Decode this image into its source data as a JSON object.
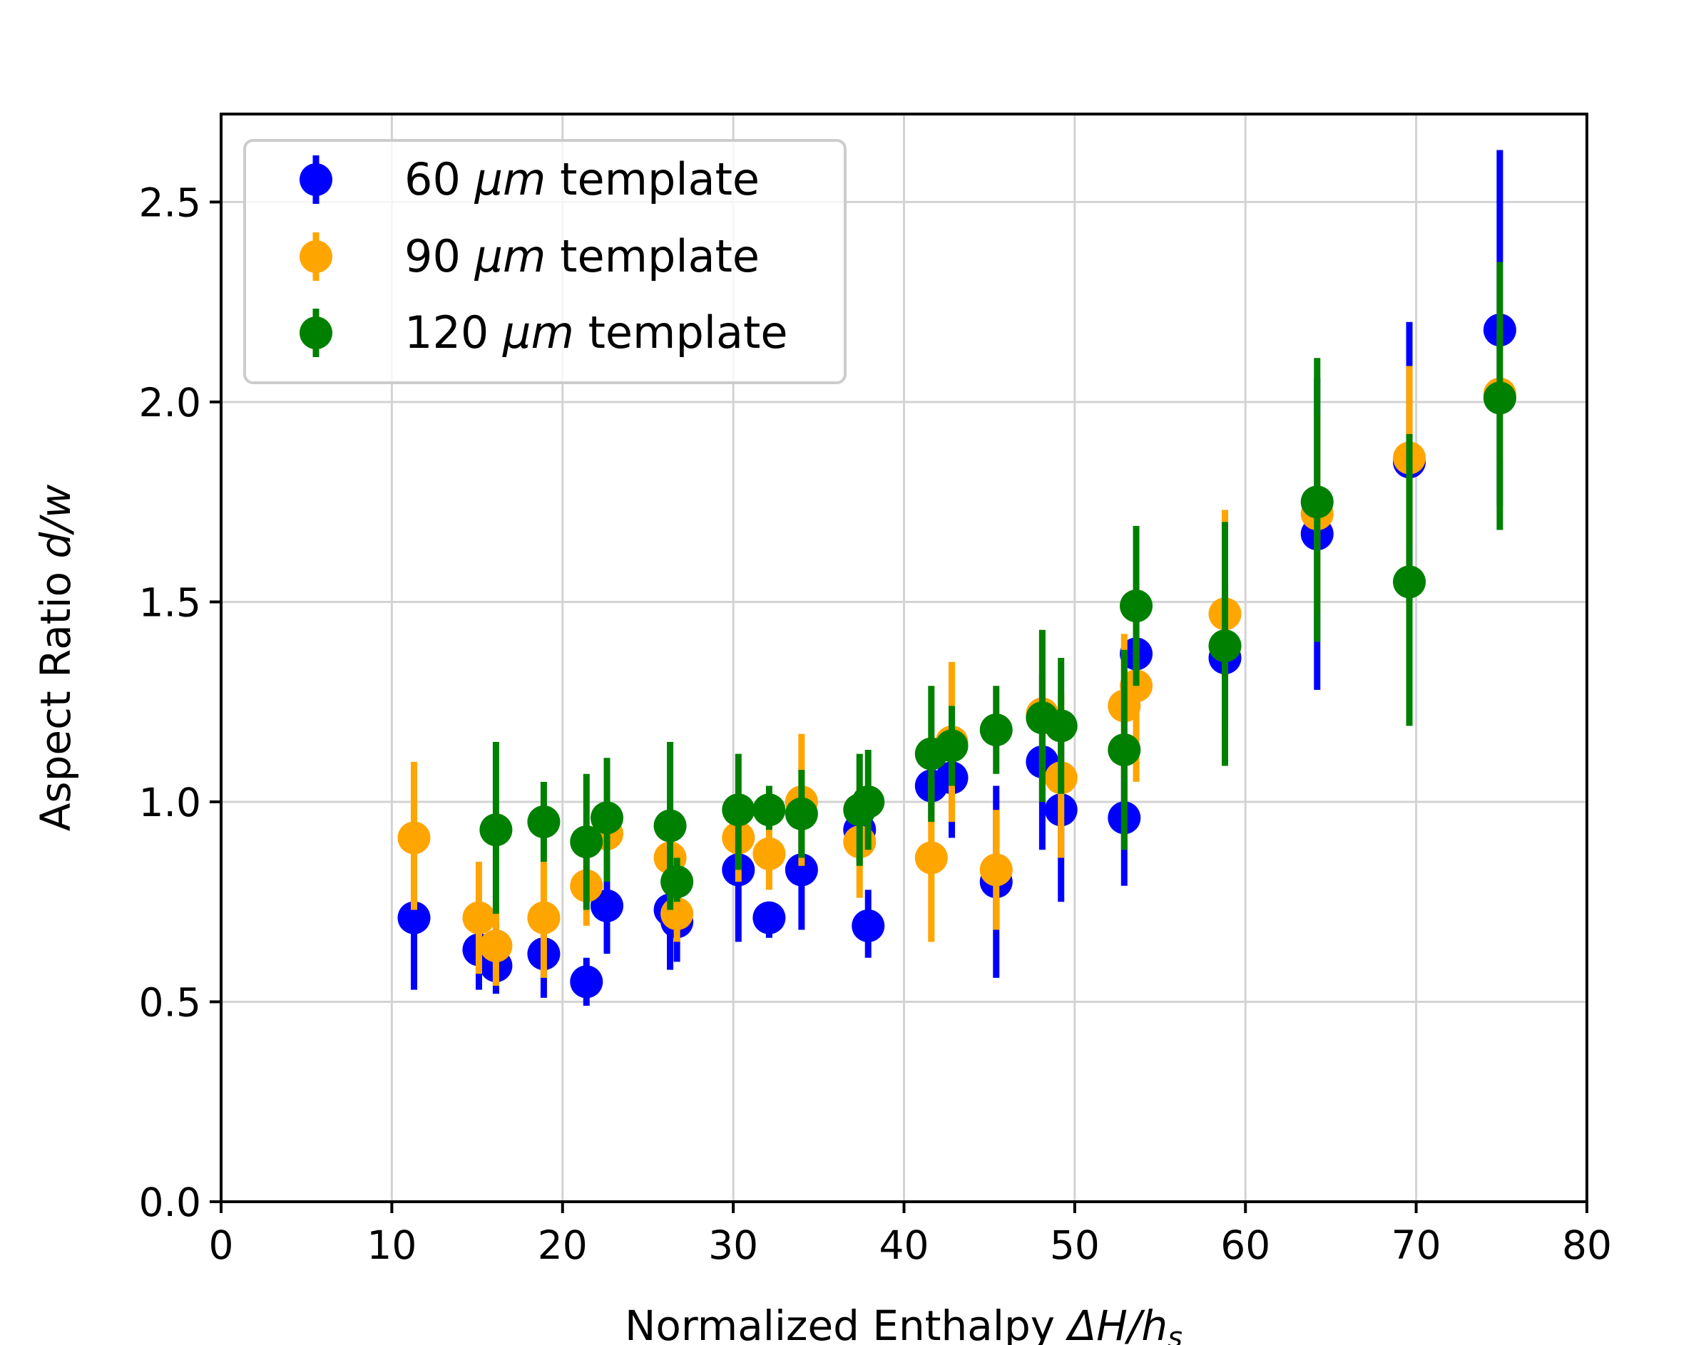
{
  "chart_data": {
    "type": "scatter",
    "title": "",
    "xlabel": {
      "prefix": "Normalized Enthalpy ",
      "math": "ΔH/h",
      "sub": "s"
    },
    "ylabel": {
      "prefix": "Aspect Ratio ",
      "math": "d/w"
    },
    "xlim": [
      0,
      80
    ],
    "ylim": [
      0,
      2.72
    ],
    "xticks": [
      0,
      10,
      20,
      30,
      40,
      50,
      60,
      70,
      80
    ],
    "yticks": [
      0.0,
      0.5,
      1.0,
      1.5,
      2.0,
      2.5
    ],
    "xtick_labels": [
      "0",
      "10",
      "20",
      "30",
      "40",
      "50",
      "60",
      "70",
      "80"
    ],
    "ytick_labels": [
      "0.0",
      "0.5",
      "1.0",
      "1.5",
      "2.0",
      "2.5"
    ],
    "grid": true,
    "legend_position": "top-left",
    "series": [
      {
        "name": "60 μm template",
        "legend": {
          "num": "60 ",
          "unit": "μm",
          "rest": " template"
        },
        "color": "#0000ff",
        "points": [
          {
            "x": 11.3,
            "y": 0.71,
            "lo": 0.53,
            "hi": 0.89
          },
          {
            "x": 15.1,
            "y": 0.63,
            "lo": 0.53,
            "hi": 0.72
          },
          {
            "x": 16.1,
            "y": 0.59,
            "lo": 0.52,
            "hi": 0.7
          },
          {
            "x": 18.9,
            "y": 0.62,
            "lo": 0.51,
            "hi": 0.73
          },
          {
            "x": 21.4,
            "y": 0.55,
            "lo": 0.49,
            "hi": 0.61
          },
          {
            "x": 22.6,
            "y": 0.74,
            "lo": 0.62,
            "hi": 0.86
          },
          {
            "x": 26.3,
            "y": 0.73,
            "lo": 0.58,
            "hi": 0.88
          },
          {
            "x": 26.7,
            "y": 0.7,
            "lo": 0.6,
            "hi": 0.8
          },
          {
            "x": 30.3,
            "y": 0.83,
            "lo": 0.65,
            "hi": 1.01
          },
          {
            "x": 32.1,
            "y": 0.71,
            "lo": 0.66,
            "hi": 0.75
          },
          {
            "x": 34.0,
            "y": 0.83,
            "lo": 0.68,
            "hi": 0.98
          },
          {
            "x": 37.4,
            "y": 0.93,
            "lo": 0.85,
            "hi": 1.01
          },
          {
            "x": 37.9,
            "y": 0.69,
            "lo": 0.61,
            "hi": 0.78
          },
          {
            "x": 41.6,
            "y": 1.04,
            "lo": 0.95,
            "hi": 1.13
          },
          {
            "x": 42.8,
            "y": 1.06,
            "lo": 0.91,
            "hi": 1.21
          },
          {
            "x": 45.4,
            "y": 0.8,
            "lo": 0.56,
            "hi": 1.04
          },
          {
            "x": 48.1,
            "y": 1.1,
            "lo": 0.88,
            "hi": 1.32
          },
          {
            "x": 49.2,
            "y": 0.98,
            "lo": 0.75,
            "hi": 1.21
          },
          {
            "x": 52.9,
            "y": 0.96,
            "lo": 0.79,
            "hi": 1.13
          },
          {
            "x": 53.6,
            "y": 1.37,
            "lo": 1.22,
            "hi": 1.52
          },
          {
            "x": 58.8,
            "y": 1.36,
            "lo": 1.17,
            "hi": 1.55
          },
          {
            "x": 64.2,
            "y": 1.67,
            "lo": 1.28,
            "hi": 2.06
          },
          {
            "x": 69.6,
            "y": 1.85,
            "lo": 1.5,
            "hi": 2.2
          },
          {
            "x": 74.9,
            "y": 2.18,
            "lo": 1.74,
            "hi": 2.63
          }
        ]
      },
      {
        "name": "90 μm template",
        "legend": {
          "num": "90 ",
          "unit": "μm",
          "rest": " template"
        },
        "color": "#ffa500",
        "points": [
          {
            "x": 11.3,
            "y": 0.91,
            "lo": 0.73,
            "hi": 1.1
          },
          {
            "x": 15.1,
            "y": 0.71,
            "lo": 0.57,
            "hi": 0.85
          },
          {
            "x": 16.1,
            "y": 0.64,
            "lo": 0.54,
            "hi": 0.74
          },
          {
            "x": 18.9,
            "y": 0.71,
            "lo": 0.56,
            "hi": 0.85
          },
          {
            "x": 21.4,
            "y": 0.79,
            "lo": 0.69,
            "hi": 0.9
          },
          {
            "x": 22.6,
            "y": 0.92,
            "lo": 0.83,
            "hi": 1.02
          },
          {
            "x": 26.3,
            "y": 0.86,
            "lo": 0.74,
            "hi": 0.98
          },
          {
            "x": 26.7,
            "y": 0.72,
            "lo": 0.65,
            "hi": 0.79
          },
          {
            "x": 30.3,
            "y": 0.91,
            "lo": 0.8,
            "hi": 1.02
          },
          {
            "x": 32.1,
            "y": 0.87,
            "lo": 0.78,
            "hi": 0.96
          },
          {
            "x": 34.0,
            "y": 1.0,
            "lo": 0.84,
            "hi": 1.17
          },
          {
            "x": 37.4,
            "y": 0.9,
            "lo": 0.76,
            "hi": 1.04
          },
          {
            "x": 41.6,
            "y": 0.86,
            "lo": 0.65,
            "hi": 1.06
          },
          {
            "x": 42.8,
            "y": 1.15,
            "lo": 0.95,
            "hi": 1.35
          },
          {
            "x": 45.4,
            "y": 0.83,
            "lo": 0.68,
            "hi": 0.98
          },
          {
            "x": 48.1,
            "y": 1.22,
            "lo": 1.0,
            "hi": 1.43
          },
          {
            "x": 49.2,
            "y": 1.06,
            "lo": 0.86,
            "hi": 1.27
          },
          {
            "x": 52.9,
            "y": 1.24,
            "lo": 1.06,
            "hi": 1.42
          },
          {
            "x": 53.6,
            "y": 1.29,
            "lo": 1.05,
            "hi": 1.52
          },
          {
            "x": 58.8,
            "y": 1.47,
            "lo": 1.22,
            "hi": 1.73
          },
          {
            "x": 64.2,
            "y": 1.72,
            "lo": 1.47,
            "hi": 1.97
          },
          {
            "x": 69.6,
            "y": 1.86,
            "lo": 1.64,
            "hi": 2.09
          },
          {
            "x": 74.9,
            "y": 2.02,
            "lo": 1.85,
            "hi": 2.18
          }
        ]
      },
      {
        "name": "120 μm template",
        "legend": {
          "num": "120 ",
          "unit": "μm",
          "rest": " template"
        },
        "color": "#008000",
        "points": [
          {
            "x": 16.1,
            "y": 0.93,
            "lo": 0.72,
            "hi": 1.15
          },
          {
            "x": 18.9,
            "y": 0.95,
            "lo": 0.85,
            "hi": 1.05
          },
          {
            "x": 21.4,
            "y": 0.9,
            "lo": 0.73,
            "hi": 1.07
          },
          {
            "x": 22.6,
            "y": 0.96,
            "lo": 0.8,
            "hi": 1.11
          },
          {
            "x": 26.3,
            "y": 0.94,
            "lo": 0.73,
            "hi": 1.15
          },
          {
            "x": 26.7,
            "y": 0.8,
            "lo": 0.75,
            "hi": 0.86
          },
          {
            "x": 30.3,
            "y": 0.98,
            "lo": 0.83,
            "hi": 1.12
          },
          {
            "x": 32.1,
            "y": 0.98,
            "lo": 0.93,
            "hi": 1.04
          },
          {
            "x": 34.0,
            "y": 0.97,
            "lo": 0.86,
            "hi": 1.08
          },
          {
            "x": 37.4,
            "y": 0.98,
            "lo": 0.84,
            "hi": 1.12
          },
          {
            "x": 37.9,
            "y": 1.0,
            "lo": 0.88,
            "hi": 1.13
          },
          {
            "x": 41.6,
            "y": 1.12,
            "lo": 0.95,
            "hi": 1.29
          },
          {
            "x": 42.8,
            "y": 1.14,
            "lo": 1.04,
            "hi": 1.24
          },
          {
            "x": 45.4,
            "y": 1.18,
            "lo": 1.07,
            "hi": 1.29
          },
          {
            "x": 48.1,
            "y": 1.21,
            "lo": 1.0,
            "hi": 1.43
          },
          {
            "x": 49.2,
            "y": 1.19,
            "lo": 1.02,
            "hi": 1.36
          },
          {
            "x": 52.9,
            "y": 1.13,
            "lo": 0.88,
            "hi": 1.38
          },
          {
            "x": 53.6,
            "y": 1.49,
            "lo": 1.29,
            "hi": 1.69
          },
          {
            "x": 58.8,
            "y": 1.39,
            "lo": 1.09,
            "hi": 1.7
          },
          {
            "x": 64.2,
            "y": 1.75,
            "lo": 1.4,
            "hi": 2.11
          },
          {
            "x": 69.6,
            "y": 1.55,
            "lo": 1.19,
            "hi": 1.92
          },
          {
            "x": 74.9,
            "y": 2.01,
            "lo": 1.68,
            "hi": 2.35
          }
        ]
      }
    ]
  }
}
